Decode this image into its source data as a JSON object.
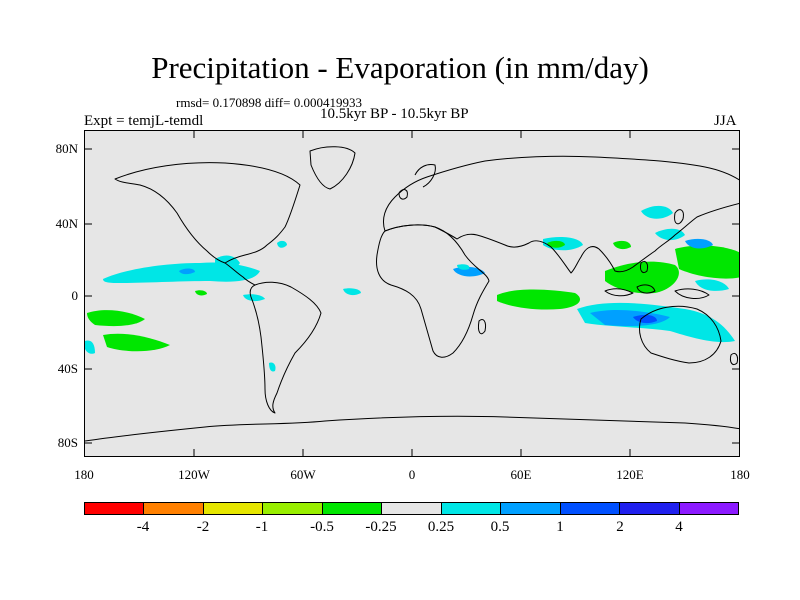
{
  "header": {
    "title": "Precipitation - Evaporation (in mm/day)",
    "stats": "rmsd= 0.170898  diff= 0.000419933",
    "experiment": "Expt = temjL-temdl",
    "period": "10.5kyr BP - 10.5kyr BP",
    "season": "JJA"
  },
  "axes": {
    "lat_labels": [
      "80N",
      "40N",
      "0",
      "40S",
      "80S"
    ],
    "lon_labels": [
      "180",
      "120W",
      "60W",
      "0",
      "60E",
      "120E",
      "180"
    ]
  },
  "colors": {
    "land_ocean_background": "#e6e6e6",
    "coastline": "#000000"
  },
  "colorbar": {
    "colors": [
      "#ff0000",
      "#ff8000",
      "#e6e600",
      "#99ee00",
      "#00e600",
      "#e6e6e6",
      "#00e6e6",
      "#00a0ff",
      "#0050ff",
      "#2020ee",
      "#8c1aff"
    ],
    "labels": [
      "-4",
      "-2",
      "-1",
      "-0.5",
      "-0.25",
      "0.25",
      "0.5",
      "1",
      "2",
      "4"
    ]
  }
}
